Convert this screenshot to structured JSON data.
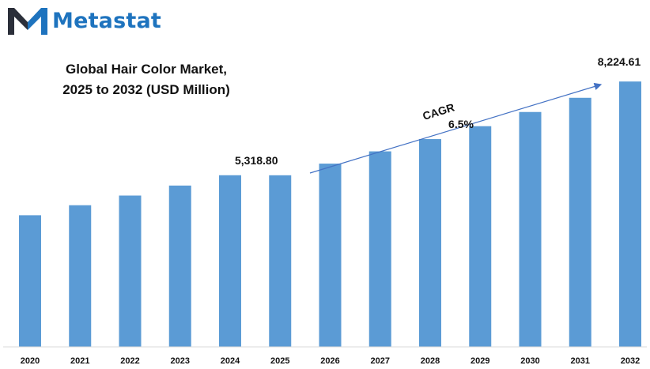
{
  "brand": {
    "name": "Metastat",
    "logo_icon": "m-logo-icon",
    "color": "#1e73be",
    "accent": "#2b2f3a"
  },
  "chart_data": {
    "type": "bar",
    "title_lines": [
      "Global Hair Color Market,",
      "2025 to 2032 (USD Million)"
    ],
    "categories": [
      "2020",
      "2021",
      "2022",
      "2023",
      "2024",
      "2025",
      "2026",
      "2027",
      "2028",
      "2029",
      "2030",
      "2031",
      "2032"
    ],
    "values": [
      4080,
      4390,
      4690,
      5000,
      5320,
      5318.8,
      5680,
      6060,
      6440,
      6840,
      7280,
      7720,
      8224.61
    ],
    "data_labels": [
      {
        "index": 5,
        "text": "5,318.80"
      },
      {
        "index": 12,
        "text": "8,224.61"
      }
    ],
    "cagr": {
      "label": "CAGR",
      "value": "6.5%"
    },
    "bar_color": "#5b9bd5",
    "ylim": [
      0,
      8400
    ],
    "grid": false,
    "legend": "none"
  }
}
